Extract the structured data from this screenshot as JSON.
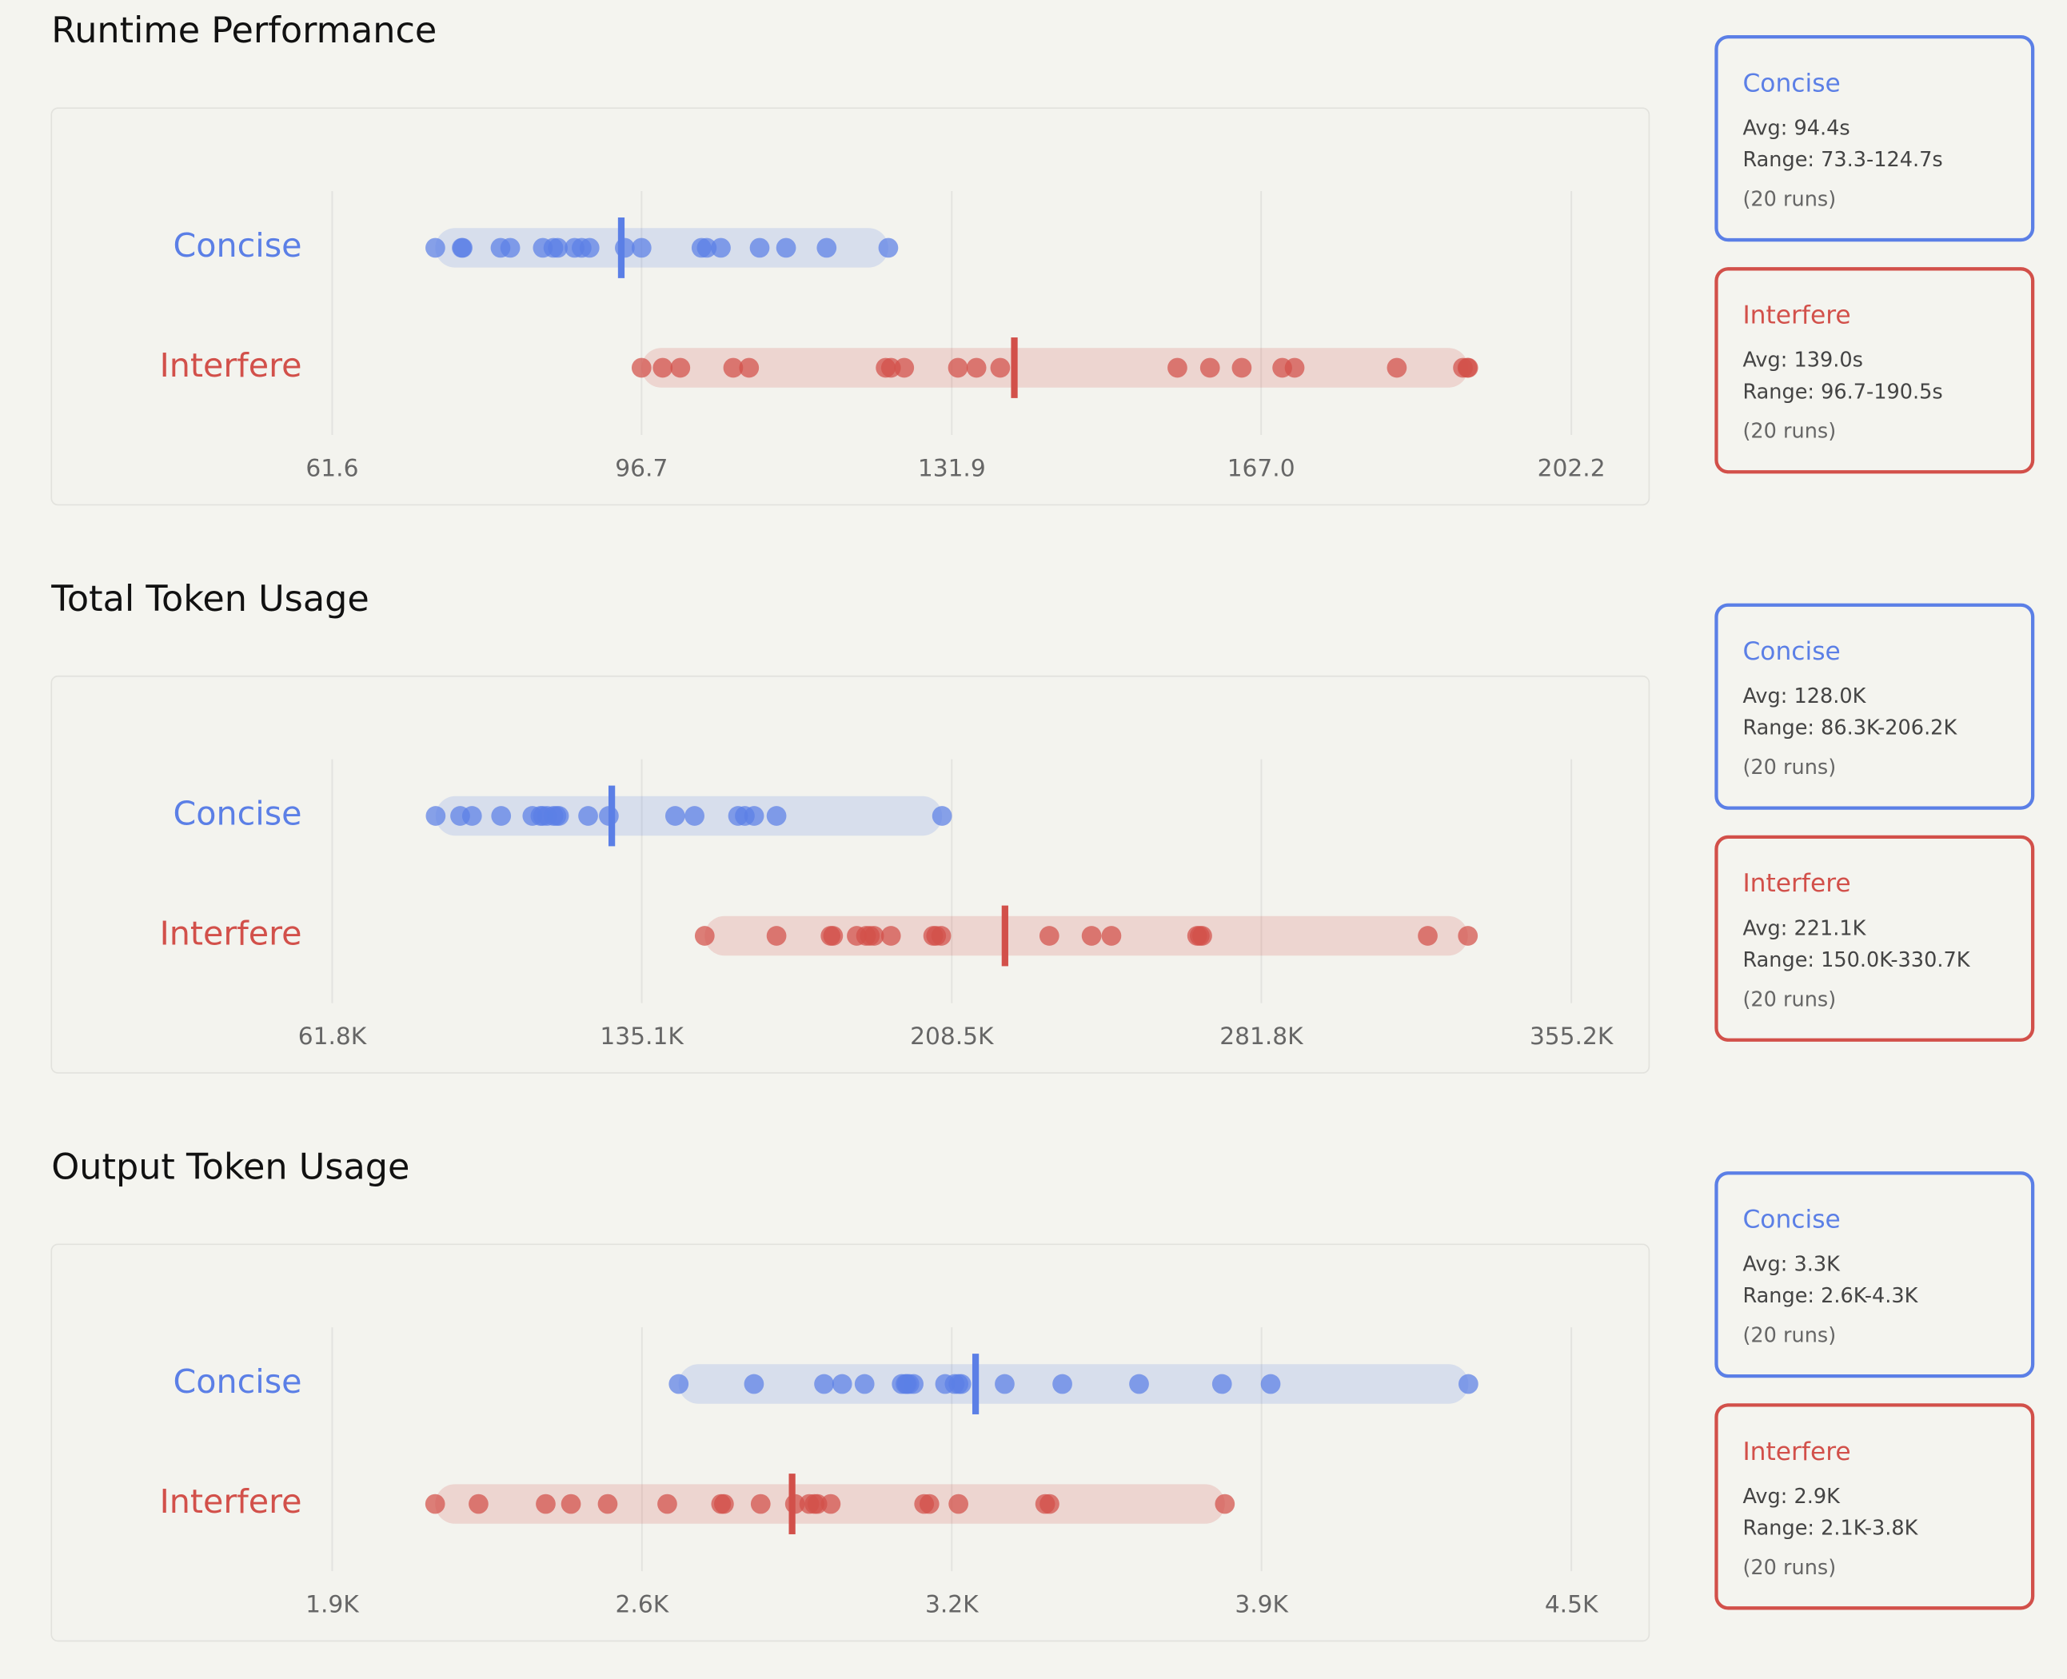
{
  "chart_data": [
    {
      "type": "strip",
      "title": "Runtime Performance",
      "xlim": [
        61.6,
        202.2
      ],
      "xticks": [
        61.6,
        96.7,
        131.9,
        {
          "value": 167,
          "label": "167.0"
        },
        202.2
      ],
      "grid": true,
      "series": [
        {
          "name": "Concise",
          "color": "#5b7fe6",
          "values": [
            73.3,
            76.3,
            76.4,
            80.7,
            81.8,
            85.5,
            86.7,
            87.2,
            89.1,
            89.9,
            90.8,
            94.8,
            96.7,
            103.5,
            104.1,
            105.7,
            110.1,
            113.1,
            117.7,
            124.7
          ],
          "mean": 94.4,
          "mean_label": "Avg: 94.4s",
          "range_label": "Range: 73.3-124.7s",
          "runs_label": "(20 runs)"
        },
        {
          "name": "Interfere",
          "color": "#d2504a",
          "values": [
            96.7,
            99.1,
            101.1,
            107.1,
            108.9,
            124.4,
            125.0,
            126.5,
            132.6,
            134.7,
            137.4,
            157.5,
            161.2,
            164.8,
            169.4,
            170.8,
            182.4,
            189.9,
            190.4,
            190.5
          ],
          "mean": 139.0,
          "mean_label": "Avg: 139.0s",
          "range_label": "Range: 96.7-190.5s",
          "runs_label": "(20 runs)"
        }
      ]
    },
    {
      "type": "strip",
      "title": "Total Token Usage",
      "xlim": [
        61800,
        355200
      ],
      "xticks": [
        {
          "value": 61800,
          "label": "61.8K"
        },
        {
          "value": 135100,
          "label": "135.1K"
        },
        {
          "value": 208500,
          "label": "208.5K"
        },
        {
          "value": 281800,
          "label": "281.8K"
        },
        {
          "value": 355200,
          "label": "355.2K"
        }
      ],
      "grid": true,
      "series": [
        {
          "name": "Concise",
          "color": "#5b7fe6",
          "values": [
            86300,
            92100,
            94900,
            101800,
            109200,
            111100,
            111700,
            112700,
            114200,
            114900,
            115500,
            122400,
            127300,
            143000,
            147600,
            157900,
            159500,
            161700,
            167000,
            206200
          ],
          "mean": 128000,
          "mean_label": "Avg: 128.0K",
          "range_label": "Range: 86.3K-206.2K",
          "runs_label": "(20 runs)"
        },
        {
          "name": "Interfere",
          "color": "#d2504a",
          "values": [
            150000,
            167000,
            179800,
            180400,
            186000,
            188200,
            189100,
            190100,
            194100,
            204100,
            204800,
            206000,
            231600,
            241600,
            246300,
            266600,
            267200,
            267800,
            321200,
            330700
          ],
          "mean": 221100,
          "mean_label": "Avg: 221.1K",
          "range_label": "Range: 150.0K-330.7K",
          "runs_label": "(20 runs)"
        }
      ]
    },
    {
      "type": "strip",
      "title": "Output Token Usage",
      "xlim": [
        1900,
        4500
      ],
      "xticks": [
        {
          "value": 1900,
          "label": "1.9K"
        },
        {
          "value": 2550,
          "label": "2.6K"
        },
        {
          "value": 3200,
          "label": "3.2K"
        },
        {
          "value": 3850,
          "label": "3.9K"
        },
        {
          "value": 4500,
          "label": "4.5K"
        }
      ],
      "grid": true,
      "series": [
        {
          "name": "Concise",
          "color": "#5b7fe6",
          "values": [
            2627,
            2785,
            2932,
            2970,
            3017,
            3095,
            3103,
            3106,
            3111,
            3120,
            3186,
            3206,
            3214,
            3220,
            3311,
            3432,
            3593,
            3767,
            3869,
            4284
          ],
          "mean": 3250,
          "mean_label": "Avg: 3.3K",
          "range_label": "Range: 2.6K-4.3K",
          "runs_label": "(20 runs)"
        },
        {
          "name": "Interfere",
          "color": "#d2504a",
          "values": [
            2116,
            2207,
            2348,
            2401,
            2478,
            2603,
            2716,
            2722,
            2799,
            2871,
            2901,
            2912,
            2918,
            2946,
            3142,
            3153,
            3214,
            3396,
            3405,
            3773
          ],
          "mean": 2865,
          "mean_label": "Avg: 2.9K",
          "range_label": "Range: 2.1K-3.8K",
          "runs_label": "(20 runs)"
        }
      ]
    }
  ]
}
